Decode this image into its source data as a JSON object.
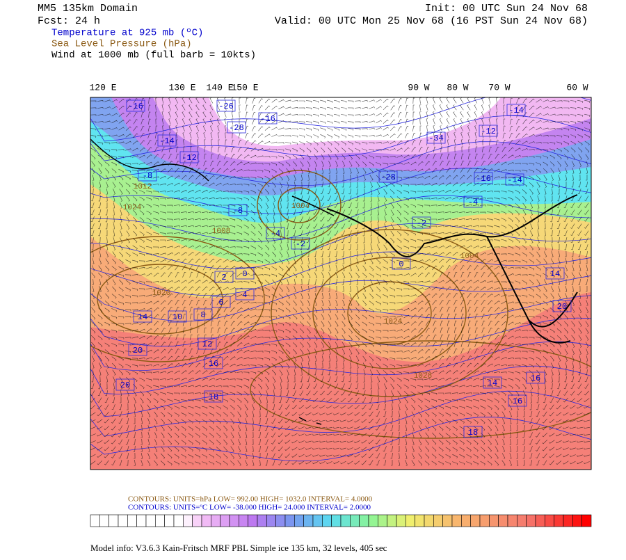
{
  "header": {
    "domain": "MM5 135km Domain",
    "forecast": "Fcst:    24 h",
    "init": "Init: 00 UTC Sun 24 Nov 68",
    "valid": "Valid: 00 UTC Mon 25 Nov 68 (16 PST Sun 24 Nov 68)",
    "fields": [
      "Temperature at 925 mb (ºC)",
      "Sea Level Pressure (hPa)",
      "Wind at 1000 mb (full barb = 10kts)"
    ]
  },
  "map": {
    "longitude_labels": [
      "120 E",
      "130 E",
      "140 E",
      "150 E",
      "90 W",
      "80 W",
      "70 W",
      "60 W"
    ],
    "temperature_labels": [
      "-16",
      "-26",
      "-16",
      "-28",
      "-14",
      "-12",
      "-8",
      "-8",
      "-4",
      "-2",
      "0",
      "2",
      "4",
      "6",
      "8",
      "10",
      "14",
      "12",
      "16",
      "20",
      "20",
      "18",
      "-34",
      "-12",
      "-14",
      "-16",
      "-14",
      "-4",
      "-2",
      "0",
      "14",
      "20",
      "14",
      "16",
      "16",
      "18",
      "-28"
    ],
    "pressure_labels": [
      "1012",
      "1024",
      "1008",
      "1004",
      "1024",
      "1028",
      "1004",
      "1020"
    ]
  },
  "footer": {
    "contours_pressure": "CONTOURS:  UNITS=hPa  LOW=   992.00      HIGH=  1032.0      INTERVAL=   4.0000",
    "contours_temperature": "CONTOURS:  UNITS=ºC  LOW= -38.000      HIGH=  24.000      INTERVAL=   2.0000",
    "model_info": "Model info: V3.6.3  Kain-Fritsch  MRF PBL    Simple ice   135 km,  32 levels,  405 sec"
  }
}
